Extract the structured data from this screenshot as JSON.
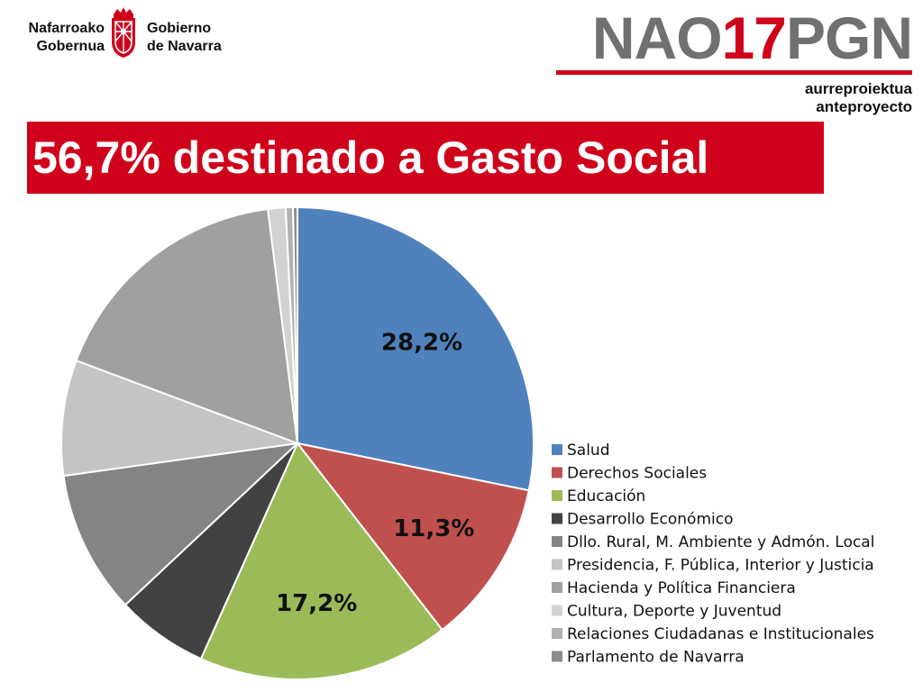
{
  "header": {
    "logo_left_line1": "Nafarroako",
    "logo_left_line2": "Gobernua",
    "logo_right_line1": "Gobierno",
    "logo_right_line2": "de Navarra",
    "brand_prefix": "NAO",
    "brand_accent": "17",
    "brand_suffix": "PGN",
    "subtitle_line1": "aurreproiektua",
    "subtitle_line2": "anteproyecto"
  },
  "banner": {
    "title": "56,7% destinado a Gasto Social"
  },
  "colors": {
    "accent": "#d0021b",
    "brand_gray": "#707070"
  },
  "chart_data": {
    "type": "pie",
    "title": "",
    "start": "12 o'clock",
    "direction": "clockwise",
    "legend_position": "right",
    "slices": [
      {
        "name": "Salud",
        "value": 28.2,
        "label": "28,2%",
        "color": "#4f81bd"
      },
      {
        "name": "Derechos Sociales",
        "value": 11.3,
        "label": "11,3%",
        "color": "#c0504d"
      },
      {
        "name": "Educación",
        "value": 17.2,
        "label": "17,2%",
        "color": "#9bbb59"
      },
      {
        "name": "Desarrollo Económico",
        "value": 6.3,
        "label": "",
        "color": "#424242"
      },
      {
        "name": "Dllo. Rural, M. Ambiente y Admón. Local",
        "value": 9.8,
        "label": "",
        "color": "#848484"
      },
      {
        "name": "Presidencia, F. Pública, Interior y Justicia",
        "value": 7.9,
        "label": "",
        "color": "#c4c4c4"
      },
      {
        "name": "Hacienda y Política Financiera",
        "value": 17.3,
        "label": "",
        "color": "#a0a0a0"
      },
      {
        "name": "Cultura, Deporte y Juventud",
        "value": 1.2,
        "label": "",
        "color": "#d2d2d2"
      },
      {
        "name": "Relaciones Ciudadanas e Institucionales",
        "value": 0.5,
        "label": "",
        "color": "#b0b0b0"
      },
      {
        "name": "Parlamento de Navarra",
        "value": 0.3,
        "label": "",
        "color": "#8c8c8c"
      }
    ]
  }
}
